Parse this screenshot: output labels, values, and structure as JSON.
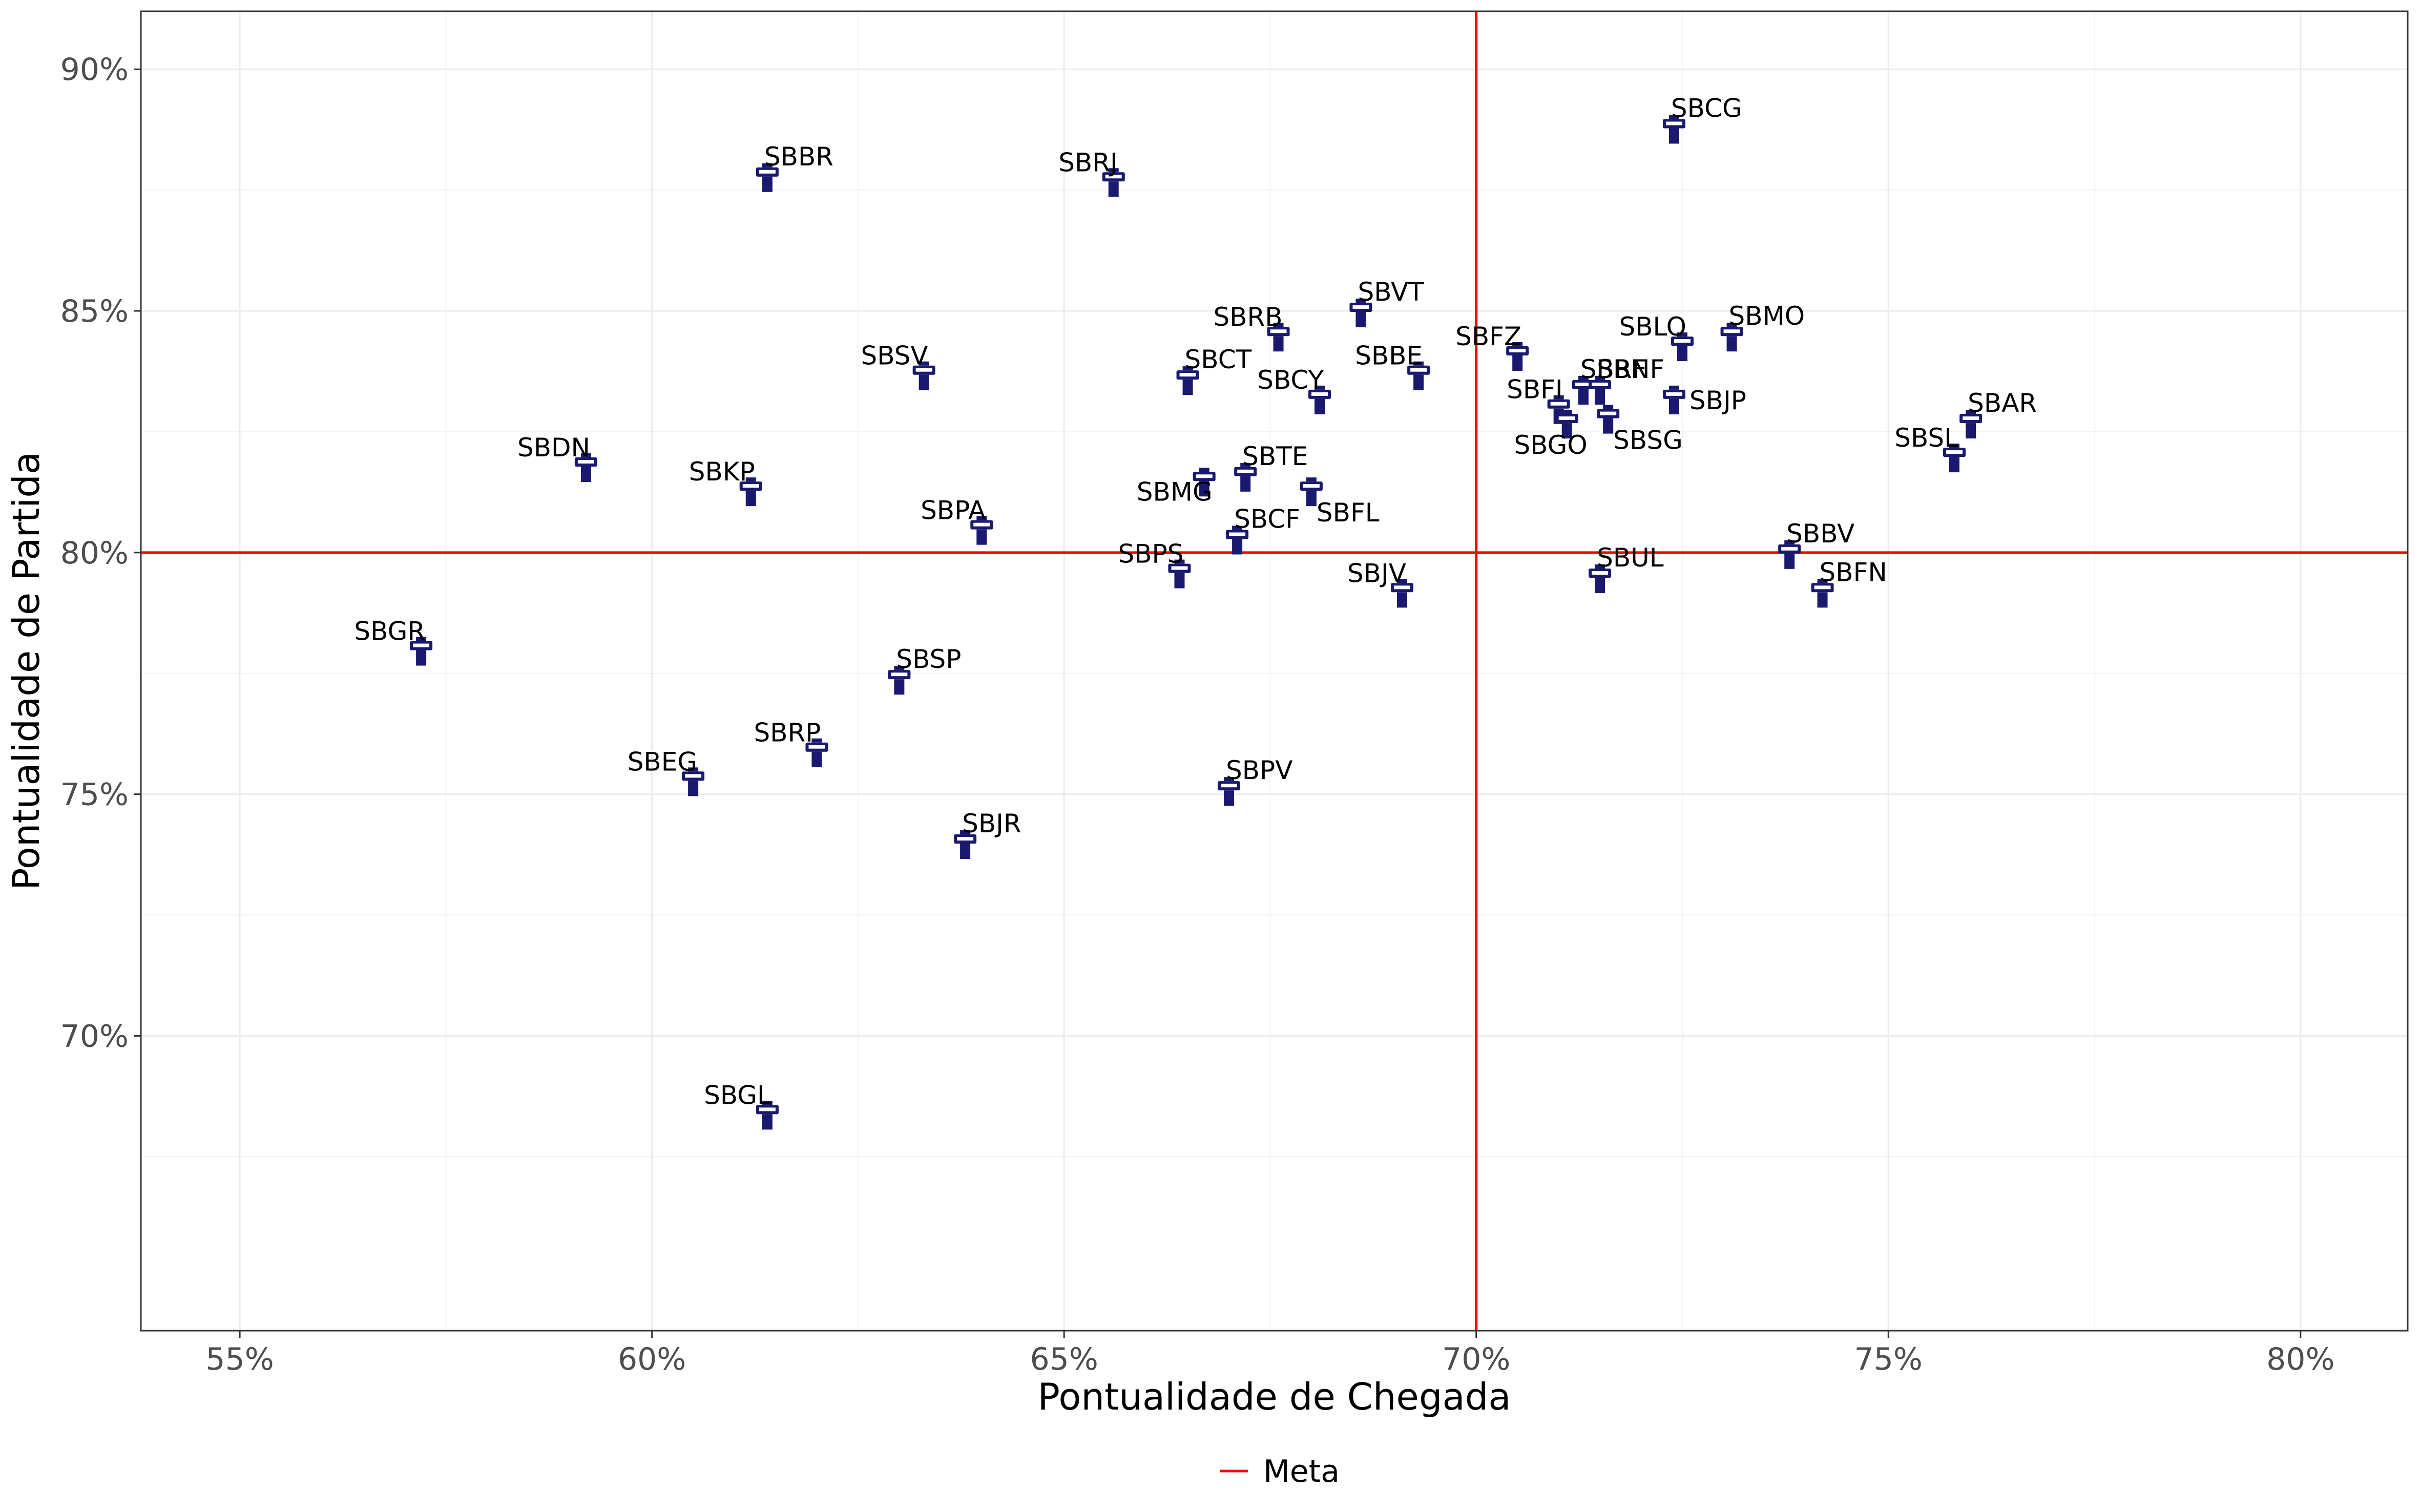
{
  "chart_data": {
    "type": "scatter",
    "xlabel": "Pontualidade de Chegada",
    "ylabel": "Pontualidade de Partida",
    "xlim": [
      0.538,
      0.813
    ],
    "ylim": [
      0.639,
      0.912
    ],
    "x_ticks": [
      0.55,
      0.6,
      0.65,
      0.7,
      0.75,
      0.8
    ],
    "x_tick_labels": [
      "55%",
      "60%",
      "65%",
      "70%",
      "75%",
      "80%"
    ],
    "y_ticks": [
      0.7,
      0.75,
      0.8,
      0.85,
      0.9
    ],
    "y_tick_labels": [
      "70%",
      "75%",
      "80%",
      "85%",
      "90%"
    ],
    "grid": true,
    "marker_color": "#191970",
    "reference_lines": {
      "name": "Meta",
      "color": "#ff0000",
      "x": 0.7,
      "y": 0.8
    },
    "legend": {
      "position": "bottom",
      "entries": [
        "Meta"
      ]
    },
    "points": [
      {
        "label": "SBCG",
        "x": 0.724,
        "y": 0.888
      },
      {
        "label": "SBBR",
        "x": 0.614,
        "y": 0.878
      },
      {
        "label": "SBRJ",
        "x": 0.656,
        "y": 0.877
      },
      {
        "label": "SBVT",
        "x": 0.686,
        "y": 0.85
      },
      {
        "label": "SBRB",
        "x": 0.676,
        "y": 0.845
      },
      {
        "label": "SBMO",
        "x": 0.731,
        "y": 0.845
      },
      {
        "label": "SBLO",
        "x": 0.725,
        "y": 0.843
      },
      {
        "label": "SBFZ",
        "x": 0.705,
        "y": 0.841
      },
      {
        "label": "SBSV",
        "x": 0.633,
        "y": 0.837
      },
      {
        "label": "SBCT",
        "x": 0.665,
        "y": 0.836
      },
      {
        "label": "SBBE",
        "x": 0.693,
        "y": 0.837
      },
      {
        "label": "SBRF",
        "x": 0.713,
        "y": 0.834
      },
      {
        "label": "SBNF",
        "x": 0.715,
        "y": 0.834
      },
      {
        "label": "SBCY",
        "x": 0.681,
        "y": 0.832
      },
      {
        "label": "SBJP",
        "x": 0.724,
        "y": 0.832
      },
      {
        "label": "SBFI",
        "x": 0.71,
        "y": 0.83
      },
      {
        "label": "SBGO",
        "x": 0.711,
        "y": 0.827
      },
      {
        "label": "SBSG",
        "x": 0.716,
        "y": 0.828
      },
      {
        "label": "SBAR",
        "x": 0.76,
        "y": 0.827
      },
      {
        "label": "SBSL",
        "x": 0.758,
        "y": 0.82
      },
      {
        "label": "SBDN",
        "x": 0.592,
        "y": 0.818
      },
      {
        "label": "SBTE",
        "x": 0.672,
        "y": 0.816
      },
      {
        "label": "SBMG",
        "x": 0.667,
        "y": 0.815
      },
      {
        "label": "SBKP",
        "x": 0.612,
        "y": 0.813
      },
      {
        "label": "SBFL",
        "x": 0.68,
        "y": 0.813
      },
      {
        "label": "SBPA",
        "x": 0.64,
        "y": 0.805
      },
      {
        "label": "SBCF",
        "x": 0.671,
        "y": 0.803
      },
      {
        "label": "SBBV",
        "x": 0.738,
        "y": 0.8
      },
      {
        "label": "SBPS",
        "x": 0.664,
        "y": 0.796
      },
      {
        "label": "SBUL",
        "x": 0.715,
        "y": 0.795
      },
      {
        "label": "SBJV",
        "x": 0.691,
        "y": 0.792
      },
      {
        "label": "SBFN",
        "x": 0.742,
        "y": 0.792
      },
      {
        "label": "SBGR",
        "x": 0.572,
        "y": 0.78
      },
      {
        "label": "SBSP",
        "x": 0.63,
        "y": 0.774
      },
      {
        "label": "SBRP",
        "x": 0.62,
        "y": 0.759
      },
      {
        "label": "SBEG",
        "x": 0.605,
        "y": 0.753
      },
      {
        "label": "SBPV",
        "x": 0.67,
        "y": 0.751
      },
      {
        "label": "SBJR",
        "x": 0.638,
        "y": 0.74
      },
      {
        "label": "SBGL",
        "x": 0.614,
        "y": 0.684
      }
    ]
  }
}
